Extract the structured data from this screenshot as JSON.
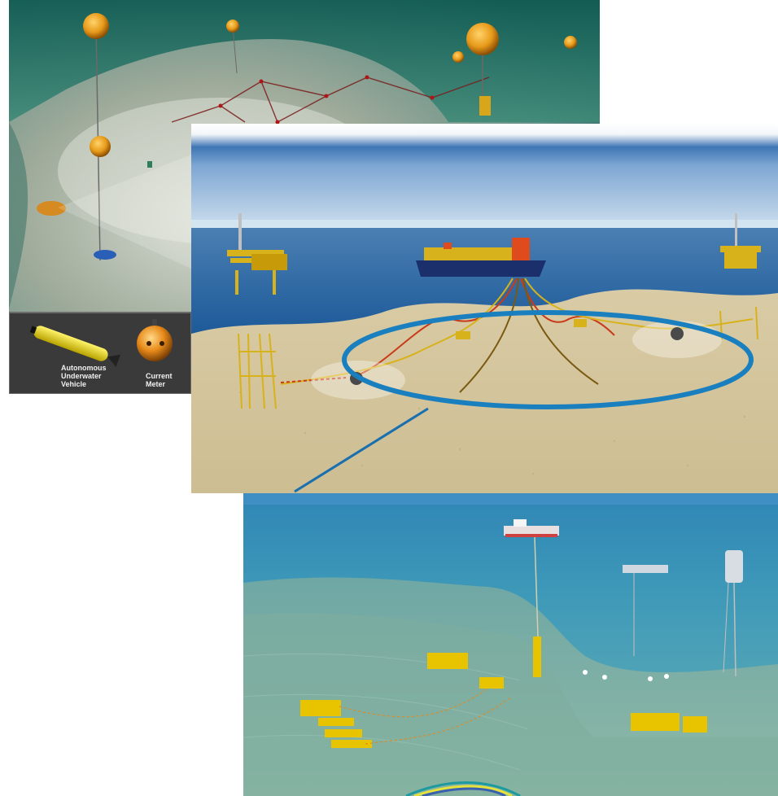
{
  "panels": {
    "monitoring": {
      "legend": [
        {
          "label": "Autonomous Underwater Vehicle",
          "lines": [
            "Autonomous",
            "Underwater",
            "Vehicle"
          ],
          "icon": "auv-icon"
        },
        {
          "label": "Current Meter",
          "lines": [
            "Current",
            "Meter"
          ],
          "icon": "current-meter-icon"
        }
      ]
    },
    "field_overview": {
      "icon": "offshore-field-icon"
    },
    "subsea_layout": {
      "icon": "subsea-field-icon"
    }
  },
  "colors": {
    "callout_ring": "#1a7fbf",
    "callout_line": "#1a6fae",
    "structure_yellow": "#e8c400",
    "buoy_orange": "#e79a1a"
  }
}
